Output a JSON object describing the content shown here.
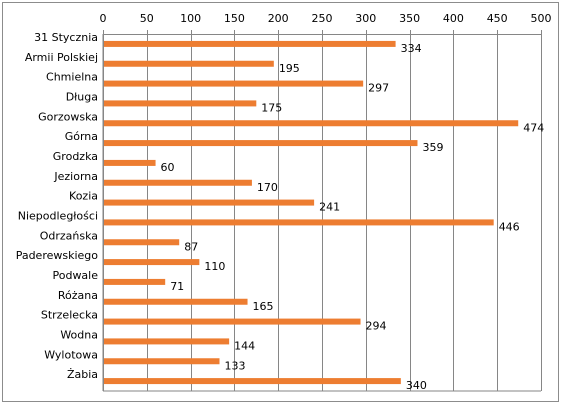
{
  "chart_data": {
    "type": "bar",
    "orientation": "horizontal",
    "categories": [
      "31 Stycznia",
      "Armii Polskiej",
      "Chmielna",
      "Długa",
      "Gorzowska",
      "Górna",
      "Grodzka",
      "Jeziorna",
      "Kozia",
      "Niepodległości",
      "Odrzańska",
      "Paderewskiego",
      "Podwale",
      "Różana",
      "Strzelecka",
      "Wodna",
      "Wylotowa",
      "Żabia"
    ],
    "values": [
      334,
      195,
      297,
      175,
      474,
      359,
      60,
      170,
      241,
      446,
      87,
      110,
      71,
      165,
      294,
      144,
      133,
      340
    ],
    "xlim": [
      0,
      500
    ],
    "xticks": [
      0,
      50,
      100,
      150,
      200,
      250,
      300,
      350,
      400,
      450,
      500
    ],
    "x_axis_position": "top",
    "gridlines": "vertical",
    "data_labels": true,
    "legend": "none",
    "title": "",
    "xlabel": "",
    "ylabel": "",
    "bar_color": "#ed7d31"
  }
}
